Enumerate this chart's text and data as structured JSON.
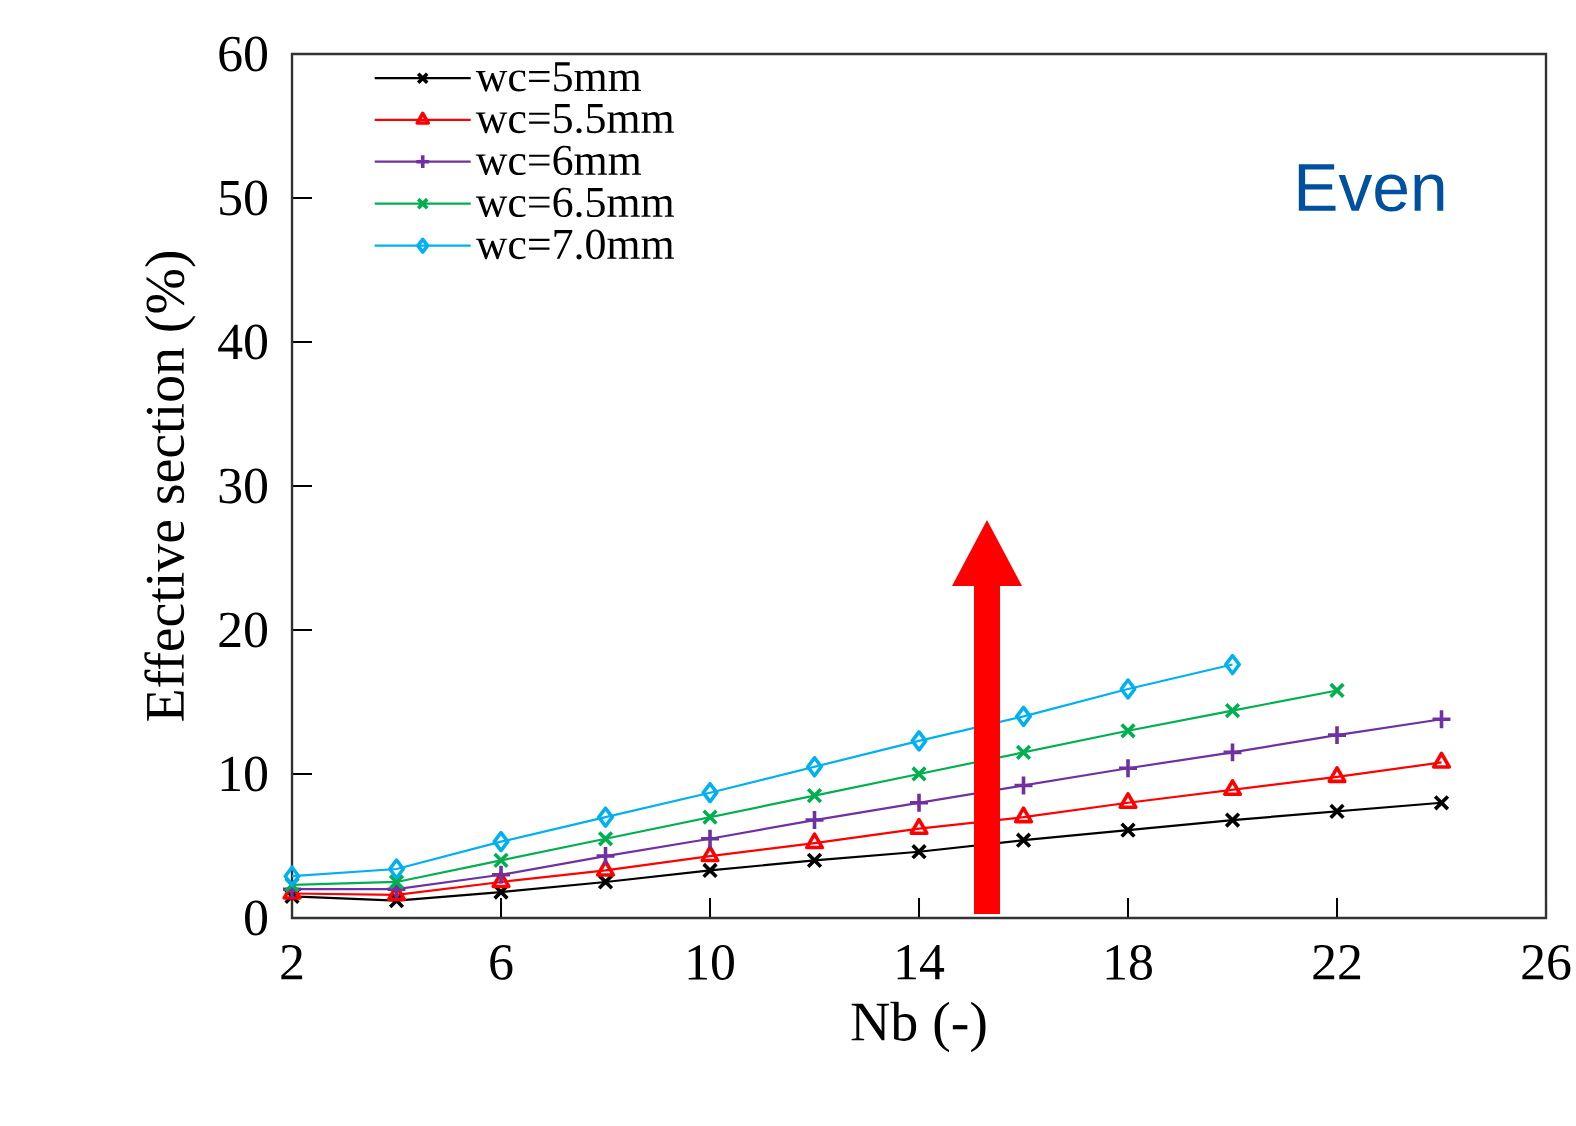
{
  "chart_data": {
    "type": "line",
    "xlabel": "Nb (-)",
    "ylabel": "Effective  section (%)",
    "x": [
      2,
      4,
      6,
      8,
      10,
      12,
      14,
      16,
      18,
      20,
      22,
      24
    ],
    "series": [
      {
        "name": "wc=5mm",
        "color": "#000000",
        "marker": "cross",
        "values": [
          1.5,
          1.2,
          1.8,
          2.5,
          3.3,
          4.0,
          4.6,
          5.4,
          6.1,
          6.8,
          7.4,
          8.0
        ]
      },
      {
        "name": "wc=5.5mm",
        "color": "#ff0000",
        "marker": "triangle",
        "values": [
          1.7,
          1.6,
          2.5,
          3.3,
          4.3,
          5.2,
          6.2,
          7.0,
          8.0,
          8.9,
          9.8,
          10.8
        ]
      },
      {
        "name": "wc=6mm",
        "color": "#7030a0",
        "marker": "plus",
        "values": [
          2.0,
          2.0,
          3.0,
          4.3,
          5.5,
          6.8,
          8.0,
          9.2,
          10.4,
          11.5,
          12.7,
          13.8
        ]
      },
      {
        "name": "wc=6.5mm",
        "color": "#00b050",
        "marker": "cross",
        "values": [
          2.3,
          2.5,
          4.0,
          5.5,
          7.0,
          8.5,
          10.0,
          11.5,
          13.0,
          14.4,
          15.8,
          null
        ]
      },
      {
        "name": "wc=7.0mm",
        "color": "#00b0f0",
        "marker": "diamond",
        "values": [
          2.9,
          3.4,
          5.3,
          7.0,
          8.7,
          10.5,
          12.3,
          14.0,
          15.9,
          17.6,
          null,
          null
        ]
      }
    ],
    "xlim": [
      2,
      26
    ],
    "xticks": [
      2,
      6,
      10,
      14,
      18,
      22,
      26
    ],
    "ylim": [
      0,
      60
    ],
    "yticks": [
      0,
      10,
      20,
      30,
      40,
      50,
      60
    ],
    "grid": false,
    "legend": "top left",
    "line_style": "solid",
    "annotations": [
      "Even"
    ]
  }
}
